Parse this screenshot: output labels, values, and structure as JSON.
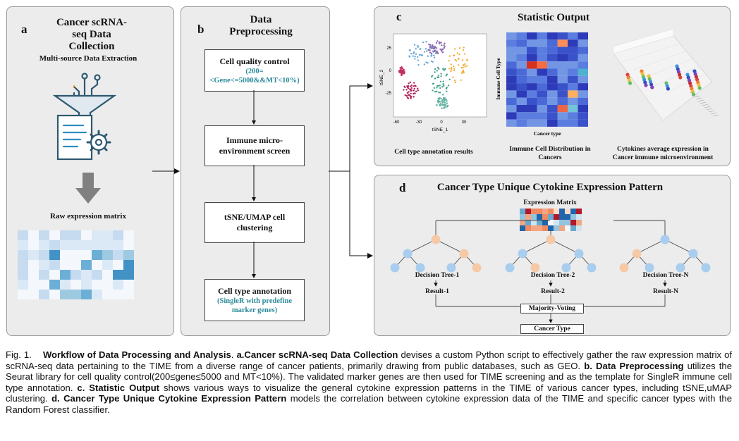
{
  "panel_a": {
    "letter": "a",
    "title": "Cancer scRNA-seq Data Collection",
    "subtitle": "Multi-source Data Extraction",
    "matrix_label": "Raw expression matrix",
    "icon": "data-funnel-document-gear-icon"
  },
  "panel_b": {
    "letter": "b",
    "title": "Data Preprocessing",
    "steps": [
      {
        "label": "Cell quality control",
        "detail": "(200=<Gene<=5000&&MT<10%)"
      },
      {
        "label": "Immune micro-environment screen",
        "detail": ""
      },
      {
        "label": "tSNE/UMAP cell clustering",
        "detail": ""
      },
      {
        "label": "Cell type annotation",
        "detail": "(SingleR with predefine marker genes)"
      }
    ]
  },
  "panel_c": {
    "letter": "c",
    "title": "Statistic Output",
    "tsne": {
      "caption": "Cell type annotation results",
      "xlabel": "tSNE_1",
      "ylabel": "tSNE_2",
      "xticks": [
        "-60",
        "-30",
        "0",
        "30"
      ],
      "yticks": [
        "25",
        "0",
        "-25"
      ]
    },
    "heatmap": {
      "caption": "Immune Cell Distribution in Cancers",
      "xlabel": "Cancer type",
      "ylabel": "Immune Cell Type"
    },
    "bars3d": {
      "caption": "Cytokines average expression in Cancer immune microenvironment"
    }
  },
  "panel_d": {
    "letter": "d",
    "title": "Cancer Type Unique Cytokine Expression Pattern",
    "matrix_label": "Expression Matrix",
    "trees": [
      {
        "label": "Decision Tree-1",
        "result": "Result-1"
      },
      {
        "label": "Decision Tree-2",
        "result": "Result-2"
      },
      {
        "label": "Decision Tree-N",
        "result": "Result-N"
      }
    ],
    "voting": "Majority-Voting",
    "output": "Cancer Type"
  },
  "caption": {
    "fig": "Fig. 1.",
    "title": "Workflow of Data Processing and Analysis",
    "a_label": "a.Cancer scRNA-seq Data Collection",
    "a_text": " devises a custom Python script to effectively gather the raw expression matrix of scRNA-seq data pertaining to the TIME from a diverse range of cancer patients, primarily drawing from public databases, such as GEO. ",
    "b_label": "b. Data Preprocessing",
    "b_text": " utilizes the Seurat library for cell quality control(200≤gene≤5000 and MT<10%). The validated marker genes are then used for TIME screening and as the template for SingleR immune cell type annotation. ",
    "c_label": "c. Statistic Output",
    "c_text": " shows various ways to visualize the general cytokine expression patterns in the TIME of various cancer types, including tSNE,uMAP clustering. ",
    "d_label": "d. Cancer Type Unique Cytokine Expression Pattern",
    "d_text": " models the correlation between cytokine expression data of the TIME and specific cancer types with the Random Forest classifier."
  },
  "colors": {
    "panel_bg": "#ececec",
    "teal_text": "#2a8a99",
    "node_blue": "#a9cdee",
    "node_peach": "#f6c9a6",
    "arrow_gray": "#808080"
  }
}
